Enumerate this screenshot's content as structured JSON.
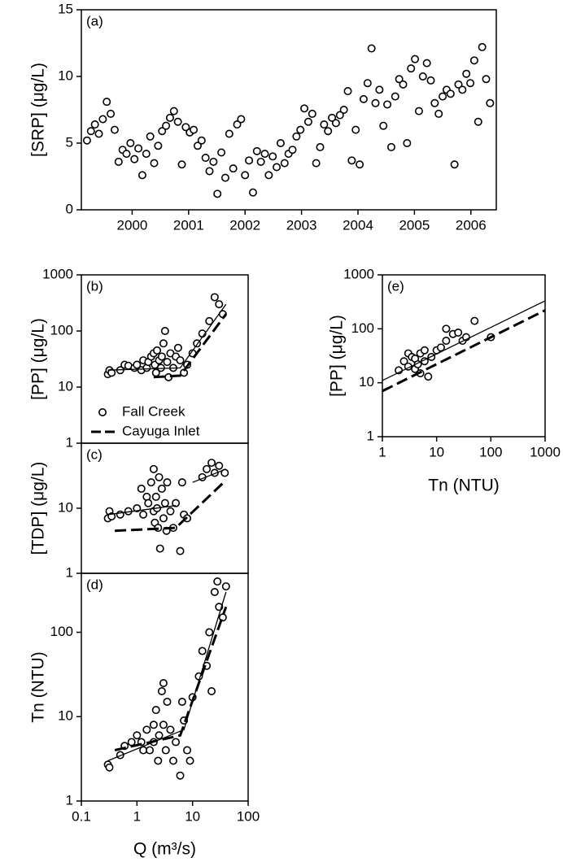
{
  "chart_data": [
    {
      "type": "scatter",
      "label": "(a)",
      "ylabel": "[SRP] (μg/L)",
      "xlim": [
        1999.6,
        2006.95
      ],
      "xticks": [
        {
          "value": 2000.5,
          "label": "2000"
        },
        {
          "value": 2001.5,
          "label": "2001"
        },
        {
          "value": 2002.5,
          "label": "2002"
        },
        {
          "value": 2003.5,
          "label": "2003"
        },
        {
          "value": 2004.5,
          "label": "2004"
        },
        {
          "value": 2005.5,
          "label": "2005"
        },
        {
          "value": 2006.5,
          "label": "2006"
        }
      ],
      "ylim": [
        0,
        15
      ],
      "yticks": [
        0,
        5,
        10,
        15
      ],
      "series": [
        {
          "mode": "markers",
          "color": "#000000",
          "x": [
            1999.7,
            1999.77,
            1999.84,
            1999.91,
            1999.98,
            2000.05,
            2000.12,
            2000.19,
            2000.26,
            2000.33,
            2000.4,
            2000.47,
            2000.54,
            2000.61,
            2000.68,
            2000.75,
            2000.82,
            2000.89,
            2000.96,
            2001.03,
            2001.1,
            2001.17,
            2001.24,
            2001.31,
            2001.38,
            2001.45,
            2001.52,
            2001.59,
            2001.66,
            2001.73,
            2001.8,
            2001.87,
            2001.94,
            2002.01,
            2002.08,
            2002.15,
            2002.22,
            2002.29,
            2002.36,
            2002.43,
            2002.5,
            2002.57,
            2002.64,
            2002.71,
            2002.78,
            2002.85,
            2002.92,
            2002.99,
            2003.06,
            2003.13,
            2003.2,
            2003.27,
            2003.34,
            2003.41,
            2003.48,
            2003.55,
            2003.62,
            2003.69,
            2003.76,
            2003.83,
            2003.9,
            2003.97,
            2004.04,
            2004.11,
            2004.18,
            2004.25,
            2004.32,
            2004.39,
            2004.46,
            2004.53,
            2004.6,
            2004.67,
            2004.74,
            2004.81,
            2004.88,
            2004.95,
            2005.02,
            2005.09,
            2005.16,
            2005.23,
            2005.3,
            2005.37,
            2005.44,
            2005.51,
            2005.58,
            2005.65,
            2005.72,
            2005.79,
            2005.86,
            2005.93,
            2006.0,
            2006.07,
            2006.14,
            2006.21,
            2006.28,
            2006.35,
            2006.42,
            2006.49,
            2006.56,
            2006.63,
            2006.7,
            2006.77,
            2006.84
          ],
          "values": [
            5.2,
            5.9,
            6.4,
            5.7,
            6.8,
            8.1,
            7.2,
            6.0,
            3.6,
            4.5,
            4.2,
            5.0,
            3.8,
            4.6,
            2.6,
            4.2,
            5.5,
            3.5,
            4.8,
            5.9,
            6.3,
            6.9,
            7.4,
            6.6,
            3.4,
            6.2,
            5.8,
            6.0,
            4.8,
            5.2,
            3.9,
            2.9,
            3.6,
            1.2,
            4.3,
            2.4,
            5.7,
            3.1,
            6.4,
            6.8,
            2.6,
            3.7,
            1.3,
            4.4,
            3.6,
            4.2,
            2.6,
            4.0,
            3.2,
            5.0,
            3.5,
            4.2,
            4.5,
            5.5,
            6.0,
            7.6,
            6.6,
            7.2,
            3.5,
            4.7,
            6.4,
            5.9,
            6.9,
            6.5,
            7.1,
            7.5,
            8.9,
            3.7,
            6.0,
            3.4,
            8.3,
            9.5,
            12.1,
            8.0,
            9.0,
            6.3,
            7.9,
            4.7,
            8.5,
            9.8,
            9.4,
            5.0,
            10.6,
            11.3,
            7.4,
            10.0,
            11.0,
            9.7,
            8.0,
            7.2,
            8.5,
            9.0,
            8.7,
            3.4,
            9.4,
            9.0,
            10.2,
            9.5,
            11.2,
            6.6,
            12.2,
            9.8,
            8.0
          ]
        }
      ]
    },
    {
      "type": "scatter",
      "label": "(b)",
      "ylabel": "[PP] (μg/L)",
      "log_x": true,
      "log_y": true,
      "xlim": [
        0.1,
        100
      ],
      "ylim": [
        1,
        1000
      ],
      "yticks": [
        1,
        10,
        100,
        1000
      ],
      "legend": "lower left",
      "series": [
        {
          "mode": "markers",
          "name": "Fall Creek",
          "color": "#000000",
          "x": [
            0.3,
            0.32,
            0.35,
            0.5,
            0.6,
            0.7,
            0.9,
            1.0,
            1.2,
            1.3,
            1.5,
            1.6,
            1.8,
            2.0,
            2.1,
            2.2,
            2.3,
            2.5,
            2.7,
            2.8,
            3.0,
            3.2,
            3.5,
            3.7,
            4.0,
            4.5,
            5.0,
            5.5,
            6.0,
            7,
            8,
            10,
            12,
            15,
            20,
            25,
            30,
            35
          ],
          "values": [
            17,
            20,
            18,
            20,
            25,
            24,
            22,
            25,
            20,
            30,
            22,
            28,
            35,
            40,
            25,
            18,
            45,
            30,
            22,
            35,
            60,
            100,
            28,
            15,
            40,
            22,
            35,
            50,
            30,
            18,
            25,
            40,
            60,
            90,
            150,
            400,
            300,
            200
          ]
        },
        {
          "mode": "line",
          "color": "#000000",
          "x": [
            0.3,
            6,
            40
          ],
          "values": [
            20,
            22,
            300
          ]
        },
        {
          "mode": "line",
          "name": "Cayuga Inlet",
          "dash": true,
          "color": "#000000",
          "x": [
            2,
            6,
            40
          ],
          "values": [
            15,
            16,
            200
          ]
        }
      ]
    },
    {
      "type": "scatter",
      "label": "(c)",
      "ylabel": "[TDP] (μg/L)",
      "log_x": true,
      "log_y": true,
      "xlim": [
        0.1,
        100
      ],
      "ylim": [
        1,
        100
      ],
      "yticks": [
        1,
        10
      ],
      "series": [
        {
          "mode": "markers",
          "color": "#000000",
          "x": [
            0.3,
            0.32,
            0.35,
            0.5,
            0.7,
            1,
            1.2,
            1.3,
            1.5,
            1.6,
            1.8,
            2,
            2,
            2.1,
            2.2,
            2.3,
            2.4,
            2.5,
            2.6,
            2.8,
            3,
            3.2,
            3.4,
            3.5,
            4,
            4.5,
            5,
            6,
            6.5,
            7,
            8,
            15,
            18,
            22,
            25,
            30,
            38
          ],
          "values": [
            7,
            9,
            7.5,
            8,
            9,
            10,
            20,
            8,
            15,
            12,
            25,
            40,
            9,
            6,
            15,
            10,
            5,
            30,
            2.4,
            20,
            7,
            12,
            4.5,
            25,
            9,
            5,
            12,
            2.2,
            25,
            8,
            7,
            30,
            40,
            50,
            35,
            45,
            35
          ]
        },
        {
          "mode": "line",
          "color": "#000000",
          "x": [
            0.3,
            5,
            null,
            10,
            40
          ],
          "values": [
            8,
            11,
            null,
            25,
            40
          ]
        },
        {
          "mode": "line",
          "dash": true,
          "color": "#000000",
          "x": [
            0.4,
            5,
            40
          ],
          "values": [
            4.5,
            5,
            27
          ]
        }
      ]
    },
    {
      "type": "scatter",
      "label": "(d)",
      "ylabel": "Tn (NTU)",
      "xlabel": "Q (m³/s)",
      "log_x": true,
      "log_y": true,
      "xlim": [
        0.1,
        100
      ],
      "xticks": [
        0.1,
        1,
        10,
        100
      ],
      "ylim": [
        1,
        500
      ],
      "yticks": [
        1,
        10,
        100
      ],
      "series": [
        {
          "mode": "markers",
          "color": "#000000",
          "x": [
            0.3,
            0.32,
            0.5,
            0.6,
            0.8,
            1,
            1.2,
            1.3,
            1.5,
            1.7,
            2,
            2,
            2.2,
            2.4,
            2.5,
            2.8,
            3,
            3,
            3.3,
            3.5,
            4,
            4.5,
            5,
            6,
            6.5,
            7,
            8,
            9,
            10,
            13,
            15,
            18,
            20,
            22,
            25,
            28,
            30,
            35,
            40
          ],
          "values": [
            2.7,
            2.5,
            3.5,
            4.5,
            5,
            6,
            5,
            4,
            7,
            4,
            8,
            5,
            12,
            3,
            6,
            20,
            25,
            8,
            4,
            15,
            7,
            3,
            5,
            2,
            15,
            9,
            4,
            3,
            17,
            30,
            60,
            40,
            100,
            20,
            300,
            400,
            200,
            150,
            350
          ]
        },
        {
          "mode": "line",
          "color": "#000000",
          "x": [
            0.3,
            7,
            40
          ],
          "values": [
            3,
            7,
            300
          ]
        },
        {
          "mode": "line",
          "dash": true,
          "color": "#000000",
          "x": [
            0.4,
            6,
            40
          ],
          "values": [
            4,
            6,
            200
          ]
        }
      ]
    },
    {
      "type": "scatter",
      "label": "(e)",
      "ylabel": "[PP] (μg/L)",
      "xlabel": "Tn (NTU)",
      "log_x": true,
      "log_y": true,
      "xlim": [
        1,
        1000
      ],
      "xticks": [
        1,
        10,
        100,
        1000
      ],
      "ylim": [
        1,
        1000
      ],
      "yticks": [
        1,
        10,
        100,
        1000
      ],
      "series": [
        {
          "mode": "markers",
          "color": "#000000",
          "x": [
            2,
            2.5,
            3,
            3,
            3.5,
            4,
            4,
            4.5,
            5,
            5,
            6,
            6,
            7,
            8,
            10,
            12,
            15,
            15,
            20,
            25,
            30,
            35,
            50,
            100
          ],
          "values": [
            17,
            25,
            35,
            20,
            30,
            18,
            28,
            22,
            15,
            35,
            25,
            40,
            13,
            30,
            40,
            45,
            100,
            60,
            80,
            85,
            60,
            70,
            140,
            70
          ]
        },
        {
          "mode": "line",
          "color": "#000000",
          "x": [
            1,
            1000
          ],
          "values": [
            11,
            330
          ]
        },
        {
          "mode": "line",
          "dash": true,
          "color": "#000000",
          "x": [
            1,
            1000
          ],
          "values": [
            7,
            220
          ]
        }
      ]
    }
  ]
}
